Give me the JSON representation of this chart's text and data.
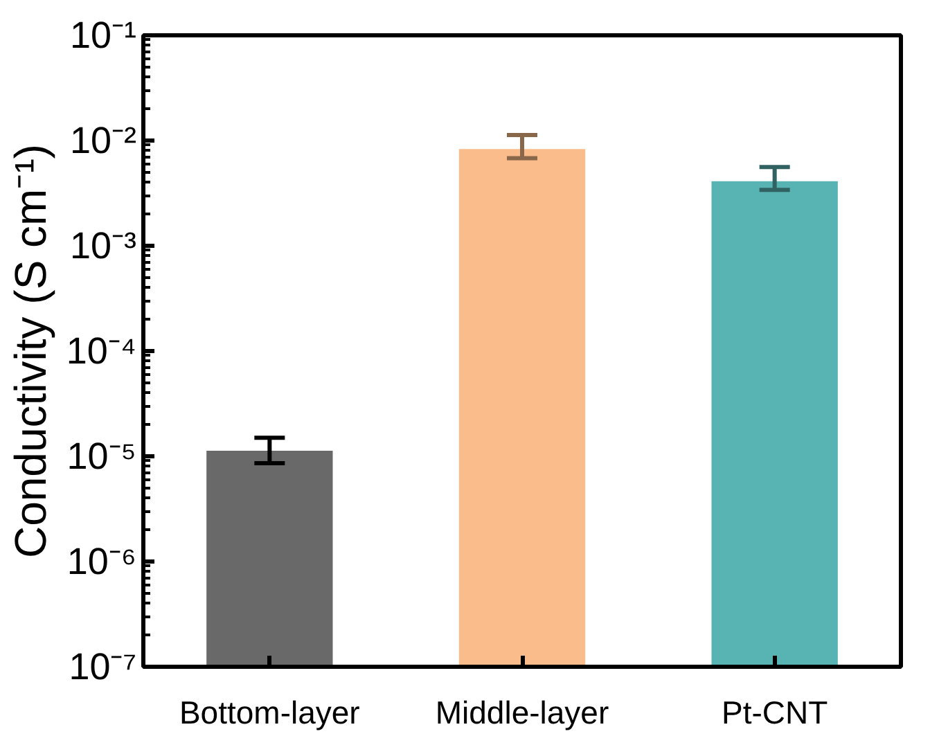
{
  "chart_data": {
    "type": "bar",
    "ylabel": "Conductivity (S cm⁻¹)",
    "log": "y",
    "categories": [
      "Bottom-layer",
      "Middle-layer",
      "Pt-CNT"
    ],
    "values": [
      1.13e-05,
      0.0083,
      0.0041
    ],
    "colors": [
      "#696969",
      "#f9bc8a",
      "#58b3b3"
    ],
    "errors": [
      [
        8.6e-06,
        1.5e-05
      ],
      [
        0.0068,
        0.0113
      ],
      [
        0.0034,
        0.0056
      ]
    ],
    "ylim": [
      1e-07,
      0.1
    ],
    "yticks": [
      {
        "value": 1e-07,
        "label": "10⁻⁷"
      },
      {
        "value": 1e-06,
        "label": "10⁻⁶"
      },
      {
        "value": 1e-05,
        "label": "10⁻⁵"
      },
      {
        "value": 0.0001,
        "label": "10⁻⁴"
      },
      {
        "value": 0.001,
        "label": "10⁻³"
      },
      {
        "value": 0.01,
        "label": "10⁻²"
      },
      {
        "value": 0.1,
        "label": "10⁻¹"
      }
    ],
    "grid": false
  }
}
